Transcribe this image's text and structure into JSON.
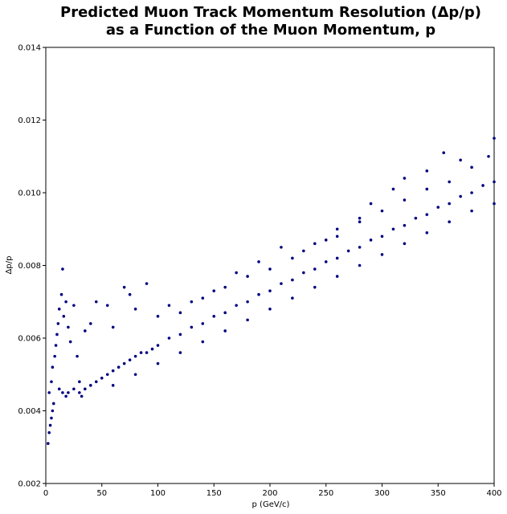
{
  "chart_data": {
    "type": "scatter",
    "title_lines": [
      "Predicted Muon Track Momentum Resolution (Δp/p)",
      "as a Function of the Muon Momentum, p"
    ],
    "xlabel": "p (GeV/c)",
    "ylabel": "Δp/p",
    "xlim": [
      0,
      400
    ],
    "ylim": [
      0.002,
      0.014
    ],
    "x_ticks": [
      0,
      50,
      100,
      150,
      200,
      250,
      300,
      350,
      400
    ],
    "y_ticks": [
      0.002,
      0.004,
      0.006,
      0.008,
      0.01,
      0.012,
      0.014
    ],
    "x_tick_labels": [
      "0",
      "50",
      "100",
      "150",
      "200",
      "250",
      "300",
      "350",
      "400"
    ],
    "y_tick_labels": [
      "0.002",
      "0.004",
      "0.006",
      "0.008",
      "0.010",
      "0.012",
      "0.014"
    ],
    "grid": false,
    "marker_color": "#00007f",
    "series": [
      {
        "values_note": "",
        "points": [
          [
            2,
            0.0031
          ],
          [
            3,
            0.0034
          ],
          [
            4,
            0.0036
          ],
          [
            5,
            0.0038
          ],
          [
            6,
            0.004
          ],
          [
            7,
            0.0042
          ],
          [
            3,
            0.0045
          ],
          [
            5,
            0.0048
          ],
          [
            6,
            0.0052
          ],
          [
            8,
            0.0055
          ],
          [
            9,
            0.0058
          ],
          [
            10,
            0.0061
          ],
          [
            11,
            0.0064
          ],
          [
            12,
            0.0068
          ],
          [
            14,
            0.0072
          ],
          [
            15,
            0.0079
          ],
          [
            16,
            0.0066
          ],
          [
            18,
            0.007
          ],
          [
            20,
            0.0063
          ],
          [
            22,
            0.0059
          ],
          [
            25,
            0.0069
          ],
          [
            28,
            0.0055
          ],
          [
            30,
            0.0048
          ],
          [
            32,
            0.0044
          ],
          [
            12,
            0.0046
          ],
          [
            15,
            0.0045
          ],
          [
            18,
            0.0044
          ],
          [
            20,
            0.0045
          ],
          [
            25,
            0.0046
          ],
          [
            30,
            0.0045
          ],
          [
            35,
            0.0046
          ],
          [
            40,
            0.0047
          ],
          [
            45,
            0.0048
          ],
          [
            50,
            0.0049
          ],
          [
            55,
            0.005
          ],
          [
            60,
            0.0051
          ],
          [
            65,
            0.0052
          ],
          [
            70,
            0.0053
          ],
          [
            75,
            0.0054
          ],
          [
            80,
            0.0055
          ],
          [
            85,
            0.0056
          ],
          [
            90,
            0.0056
          ],
          [
            95,
            0.0057
          ],
          [
            100,
            0.0058
          ],
          [
            110,
            0.006
          ],
          [
            120,
            0.0061
          ],
          [
            130,
            0.0063
          ],
          [
            140,
            0.0064
          ],
          [
            150,
            0.0066
          ],
          [
            160,
            0.0067
          ],
          [
            170,
            0.0069
          ],
          [
            180,
            0.007
          ],
          [
            190,
            0.0072
          ],
          [
            200,
            0.0073
          ],
          [
            210,
            0.0075
          ],
          [
            220,
            0.0076
          ],
          [
            230,
            0.0078
          ],
          [
            240,
            0.0079
          ],
          [
            250,
            0.0081
          ],
          [
            260,
            0.0082
          ],
          [
            270,
            0.0084
          ],
          [
            280,
            0.0085
          ],
          [
            290,
            0.0087
          ],
          [
            300,
            0.0088
          ],
          [
            310,
            0.009
          ],
          [
            320,
            0.0091
          ],
          [
            330,
            0.0093
          ],
          [
            340,
            0.0094
          ],
          [
            350,
            0.0096
          ],
          [
            360,
            0.0097
          ],
          [
            370,
            0.0099
          ],
          [
            380,
            0.01
          ],
          [
            390,
            0.0102
          ],
          [
            400,
            0.0103
          ],
          [
            400,
            0.0115
          ],
          [
            395,
            0.011
          ],
          [
            370,
            0.0109
          ],
          [
            355,
            0.0111
          ],
          [
            340,
            0.0106
          ],
          [
            320,
            0.0104
          ],
          [
            310,
            0.0101
          ],
          [
            290,
            0.0097
          ],
          [
            280,
            0.0092
          ],
          [
            260,
            0.009
          ],
          [
            250,
            0.0087
          ],
          [
            230,
            0.0084
          ],
          [
            210,
            0.0085
          ],
          [
            190,
            0.0081
          ],
          [
            170,
            0.0078
          ],
          [
            150,
            0.0073
          ],
          [
            130,
            0.007
          ],
          [
            110,
            0.0069
          ],
          [
            90,
            0.0075
          ],
          [
            75,
            0.0072
          ],
          [
            70,
            0.0074
          ],
          [
            55,
            0.0069
          ],
          [
            45,
            0.007
          ],
          [
            40,
            0.0064
          ],
          [
            35,
            0.0062
          ],
          [
            60,
            0.0063
          ],
          [
            80,
            0.0068
          ],
          [
            100,
            0.0066
          ],
          [
            120,
            0.0067
          ],
          [
            140,
            0.0071
          ],
          [
            160,
            0.0074
          ],
          [
            180,
            0.0077
          ],
          [
            200,
            0.0079
          ],
          [
            220,
            0.0082
          ],
          [
            240,
            0.0086
          ],
          [
            260,
            0.0088
          ],
          [
            280,
            0.0093
          ],
          [
            300,
            0.0095
          ],
          [
            320,
            0.0098
          ],
          [
            340,
            0.0101
          ],
          [
            360,
            0.0103
          ],
          [
            380,
            0.0107
          ],
          [
            60,
            0.0047
          ],
          [
            80,
            0.005
          ],
          [
            100,
            0.0053
          ],
          [
            120,
            0.0056
          ],
          [
            140,
            0.0059
          ],
          [
            160,
            0.0062
          ],
          [
            180,
            0.0065
          ],
          [
            200,
            0.0068
          ],
          [
            220,
            0.0071
          ],
          [
            240,
            0.0074
          ],
          [
            260,
            0.0077
          ],
          [
            280,
            0.008
          ],
          [
            300,
            0.0083
          ],
          [
            320,
            0.0086
          ],
          [
            340,
            0.0089
          ],
          [
            360,
            0.0092
          ],
          [
            380,
            0.0095
          ],
          [
            400,
            0.0097
          ]
        ]
      }
    ]
  }
}
